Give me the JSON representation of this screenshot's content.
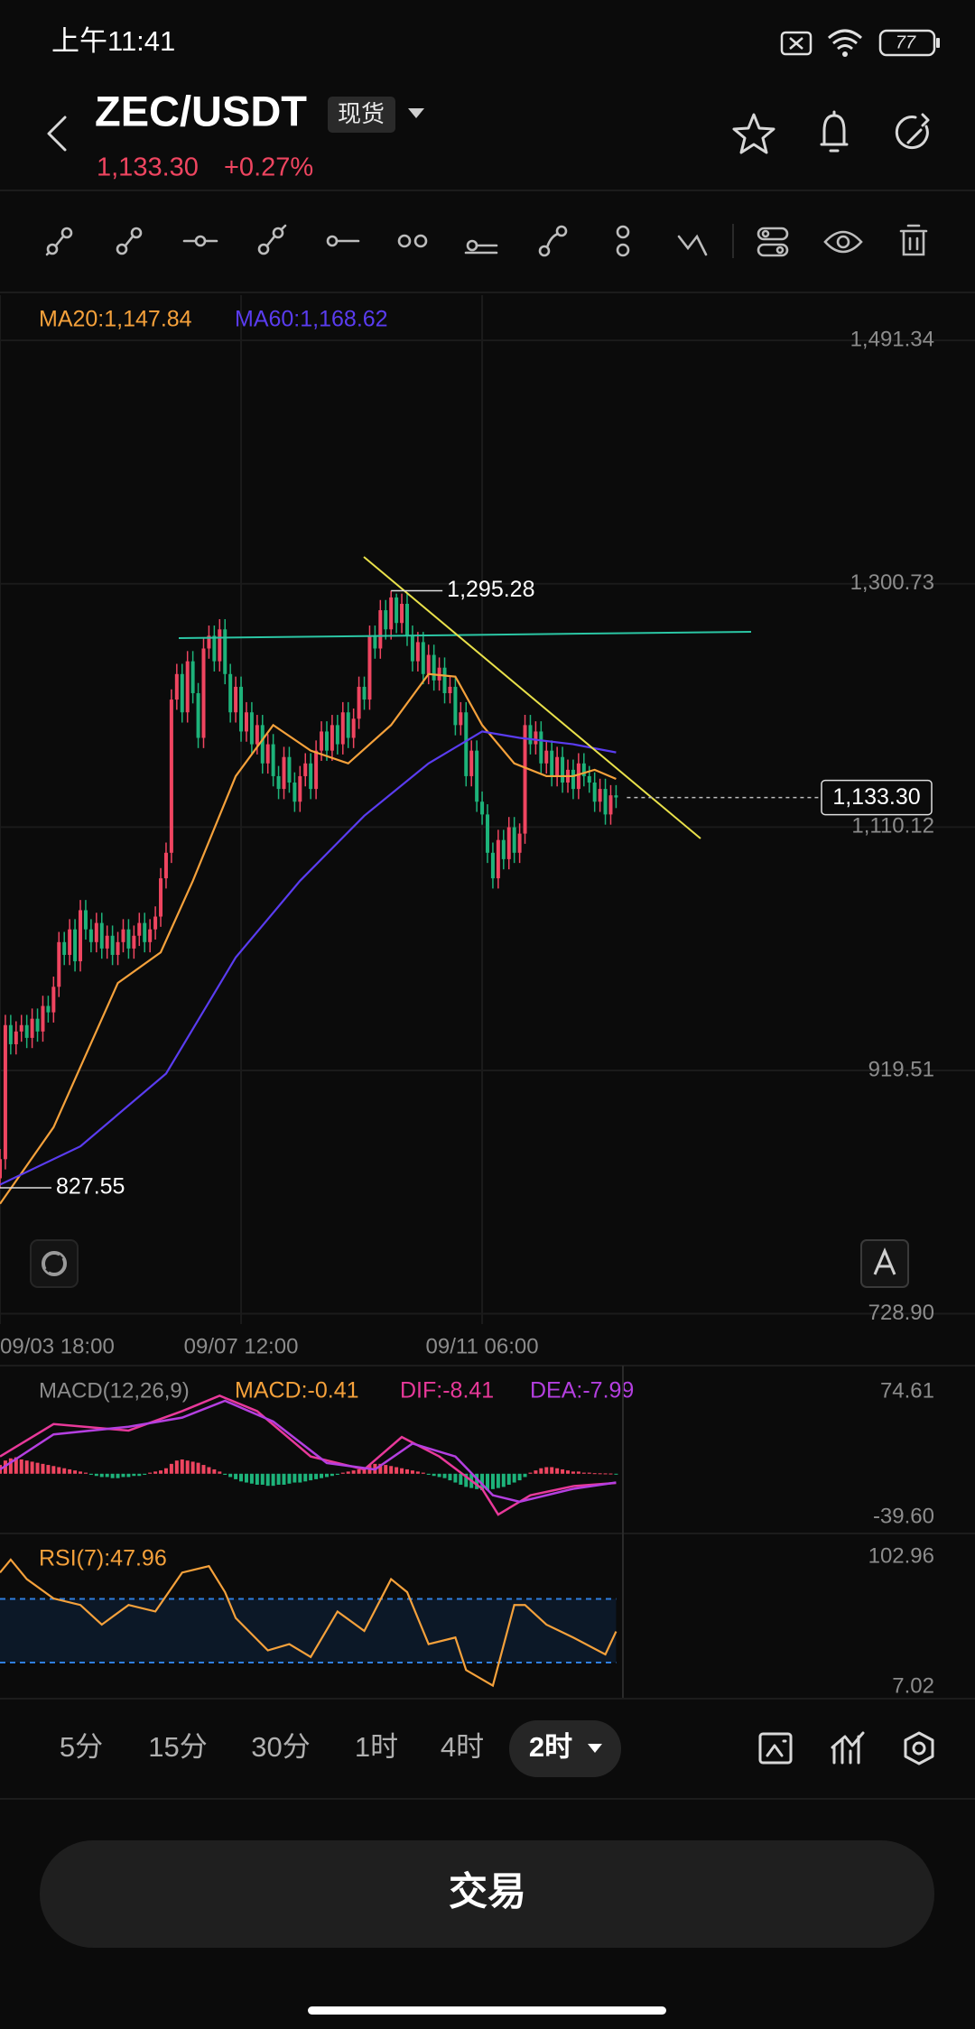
{
  "status_bar": {
    "time": "上午11:41",
    "battery": "77"
  },
  "header": {
    "pair": "ZEC/USDT",
    "market": "现货",
    "price": "1,133.30",
    "change": "+0.27%"
  },
  "chart_data": [
    {
      "type": "candlestick",
      "up_color": "#ef4560",
      "down_color": "#1db37a",
      "xlim": [
        0,
        182
      ],
      "xticks": [
        {
          "value": 0,
          "label": "09/03 18:00"
        },
        {
          "value": 45,
          "label": "09/07 12:00"
        },
        {
          "value": 90,
          "label": "09/11 06:00"
        }
      ],
      "ylim": [
        720.8,
        1526.8
      ],
      "yticks": [
        {
          "value": 1491.34,
          "label": "1,491.34"
        },
        {
          "value": 1300.73,
          "label": "1,300.73"
        },
        {
          "value": 1110.12,
          "label": "1,110.12"
        },
        {
          "value": 919.51,
          "label": "919.51"
        },
        {
          "value": 728.9,
          "label": "728.90"
        }
      ],
      "grid": true,
      "candles": {
        "open": [
          835,
          850,
          955,
          940,
          950,
          955,
          945,
          960,
          950,
          970,
          965,
          985,
          1020,
          1010,
          1030,
          1005,
          1045,
          1030,
          1020,
          1035,
          1015,
          1025,
          1010,
          1020,
          1030,
          1015,
          1025,
          1035,
          1020,
          1030,
          1040,
          1070,
          1090,
          1210,
          1230,
          1200,
          1240,
          1215,
          1180,
          1250,
          1260,
          1240,
          1265,
          1230,
          1200,
          1220,
          1185,
          1200,
          1175,
          1190,
          1160,
          1175,
          1150,
          1140,
          1165,
          1145,
          1130,
          1150,
          1160,
          1140,
          1170,
          1185,
          1170,
          1190,
          1175,
          1200,
          1180,
          1195,
          1220,
          1210,
          1260,
          1250,
          1280,
          1265,
          1290,
          1270,
          1285,
          1260,
          1240,
          1255,
          1230,
          1245,
          1225,
          1235,
          1215,
          1220,
          1190,
          1200,
          1150,
          1170,
          1130,
          1120,
          1090,
          1070,
          1100,
          1085,
          1110,
          1090,
          1105,
          1190,
          1175,
          1185,
          1160,
          1170,
          1150,
          1165,
          1145,
          1155,
          1140,
          1160,
          1150,
          1145,
          1130,
          1140,
          1120,
          1135
        ],
        "high": [
          858,
          963,
          963,
          958,
          963,
          963,
          968,
          968,
          978,
          978,
          993,
          1028,
          1028,
          1038,
          1038,
          1053,
          1053,
          1038,
          1043,
          1043,
          1033,
          1033,
          1028,
          1038,
          1038,
          1033,
          1043,
          1043,
          1038,
          1048,
          1078,
          1098,
          1218,
          1238,
          1238,
          1248,
          1248,
          1223,
          1258,
          1268,
          1268,
          1273,
          1273,
          1238,
          1228,
          1228,
          1208,
          1208,
          1198,
          1198,
          1183,
          1183,
          1158,
          1173,
          1173,
          1153,
          1158,
          1168,
          1168,
          1178,
          1193,
          1193,
          1198,
          1198,
          1208,
          1208,
          1203,
          1228,
          1228,
          1268,
          1268,
          1288,
          1288,
          1295.28,
          1293,
          1293,
          1293,
          1268,
          1263,
          1263,
          1253,
          1253,
          1243,
          1243,
          1228,
          1228,
          1208,
          1208,
          1178,
          1178,
          1138,
          1128,
          1098,
          1108,
          1108,
          1118,
          1118,
          1113,
          1198,
          1198,
          1193,
          1193,
          1178,
          1178,
          1173,
          1173,
          1163,
          1163,
          1168,
          1168,
          1158,
          1153,
          1148,
          1148,
          1143,
          1143
        ],
        "low": [
          827.55,
          842,
          932,
          932,
          942,
          937,
          937,
          942,
          942,
          957,
          957,
          977,
          1002,
          1002,
          997,
          997,
          1022,
          1012,
          1012,
          1007,
          1007,
          1002,
          1002,
          1012,
          1007,
          1007,
          1017,
          1012,
          1012,
          1022,
          1032,
          1062,
          1082,
          1202,
          1192,
          1192,
          1207,
          1172,
          1172,
          1242,
          1232,
          1232,
          1222,
          1192,
          1192,
          1177,
          1177,
          1167,
          1167,
          1152,
          1152,
          1142,
          1132,
          1132,
          1137,
          1122,
          1122,
          1142,
          1132,
          1132,
          1162,
          1162,
          1162,
          1167,
          1167,
          1172,
          1172,
          1187,
          1202,
          1202,
          1242,
          1242,
          1257,
          1257,
          1262,
          1262,
          1252,
          1232,
          1232,
          1222,
          1222,
          1217,
          1217,
          1207,
          1207,
          1182,
          1182,
          1142,
          1142,
          1122,
          1112,
          1082,
          1062,
          1062,
          1077,
          1077,
          1082,
          1082,
          1097,
          1167,
          1167,
          1152,
          1152,
          1142,
          1142,
          1137,
          1137,
          1132,
          1132,
          1142,
          1137,
          1122,
          1122,
          1112,
          1112,
          1125
        ],
        "close": [
          850,
          955,
          940,
          950,
          955,
          945,
          960,
          950,
          970,
          965,
          985,
          1020,
          1010,
          1030,
          1005,
          1045,
          1030,
          1020,
          1035,
          1015,
          1025,
          1010,
          1020,
          1030,
          1015,
          1025,
          1035,
          1020,
          1030,
          1040,
          1070,
          1090,
          1210,
          1230,
          1200,
          1240,
          1215,
          1180,
          1250,
          1260,
          1240,
          1265,
          1230,
          1200,
          1220,
          1185,
          1200,
          1175,
          1190,
          1160,
          1175,
          1150,
          1140,
          1165,
          1145,
          1130,
          1150,
          1160,
          1140,
          1170,
          1185,
          1170,
          1190,
          1175,
          1200,
          1180,
          1195,
          1220,
          1210,
          1260,
          1250,
          1280,
          1265,
          1290,
          1270,
          1285,
          1260,
          1240,
          1255,
          1230,
          1245,
          1225,
          1235,
          1215,
          1220,
          1190,
          1200,
          1150,
          1170,
          1130,
          1120,
          1090,
          1070,
          1100,
          1085,
          1110,
          1090,
          1105,
          1190,
          1175,
          1185,
          1160,
          1170,
          1150,
          1165,
          1145,
          1155,
          1140,
          1160,
          1150,
          1145,
          1130,
          1140,
          1120,
          1135,
          1133.3
        ]
      },
      "series": [
        {
          "label": "MA20:1,147.84",
          "color": "#f5a13b",
          "x": [
            0,
            10,
            22,
            30,
            36,
            44,
            51,
            58,
            65,
            73,
            80,
            85,
            90,
            96,
            102,
            107,
            111,
            115
          ],
          "values": [
            815,
            875,
            988,
            1012,
            1068,
            1150,
            1190,
            1170,
            1160,
            1190,
            1230,
            1228,
            1190,
            1160,
            1150,
            1150,
            1155,
            1147.84
          ]
        },
        {
          "label": "MA60:1,168.62",
          "color": "#5a3cf0",
          "x": [
            0,
            15,
            31,
            44,
            56,
            68,
            80,
            90,
            97,
            107,
            115
          ],
          "values": [
            830,
            860,
            917,
            1008,
            1068,
            1119,
            1160,
            1185,
            1180,
            1175,
            1168.62
          ]
        }
      ],
      "annotations": [
        {
          "x": 73,
          "value": 1295.28,
          "label": "1,295.28"
        },
        {
          "x": 0,
          "value": 827.55,
          "label": "827.55"
        }
      ],
      "last_price": {
        "value": 1133.3,
        "label": "1,133.30"
      }
    },
    {
      "type": "macd",
      "title": "MACD(12,26,9)",
      "xlim": [
        0,
        182
      ],
      "ylim": [
        -39.6,
        74.61
      ],
      "yticks": [
        74.61,
        {
          "value": -39.6,
          "label": "-39.60"
        }
      ],
      "histogram": {
        "label": "MACD:-0.41",
        "color": "#f5a13b",
        "up_color": "#ef4560",
        "down_color": "#1db37a",
        "values": [
          8,
          12,
          14,
          15,
          13,
          12,
          11,
          10,
          9,
          8,
          7,
          6,
          5,
          4,
          3,
          2,
          1,
          -1,
          -2,
          -3,
          -3,
          -4,
          -4,
          -3,
          -3,
          -2,
          -2,
          -1,
          1,
          2,
          3,
          5,
          9,
          12,
          13,
          12,
          11,
          10,
          8,
          6,
          4,
          2,
          -1,
          -3,
          -5,
          -7,
          -8,
          -9,
          -10,
          -10,
          -11,
          -11,
          -10,
          -10,
          -9,
          -8,
          -8,
          -7,
          -6,
          -5,
          -4,
          -3,
          -2,
          -1,
          1,
          2,
          3,
          4,
          6,
          8,
          9,
          9,
          8,
          7,
          6,
          5,
          4,
          3,
          2,
          1,
          -1,
          -2,
          -3,
          -4,
          -6,
          -8,
          -10,
          -12,
          -13,
          -14,
          -15,
          -15,
          -14,
          -13,
          -12,
          -10,
          -8,
          -6,
          -3,
          1,
          3,
          5,
          6,
          6,
          5,
          4,
          3,
          2,
          2,
          1,
          1,
          0.5,
          0.4,
          0.3,
          0.2,
          -0.41
        ]
      },
      "series": [
        {
          "label": "DIF:-8.41",
          "color": "#e8399a",
          "x": [
            0,
            10,
            24,
            34,
            41,
            48,
            58,
            68,
            75,
            82,
            90,
            93,
            99,
            107,
            115
          ],
          "values": [
            15.7,
            45.2,
            39.3,
            57,
            71,
            57,
            15.7,
            3.9,
            33.4,
            15.7,
            -13.7,
            -37.2,
            -19.6,
            -11.3,
            -8.41
          ]
        },
        {
          "label": "DEA:-7.99",
          "color": "#b43fe0",
          "x": [
            0,
            10,
            24,
            34,
            42,
            51,
            61,
            70,
            77,
            85,
            92,
            97,
            107,
            115
          ],
          "values": [
            3.9,
            35.8,
            42.8,
            51.1,
            66.4,
            47.5,
            9.8,
            3.9,
            27.5,
            15.7,
            -19.6,
            -25.5,
            -13.7,
            -7.99
          ]
        }
      ]
    },
    {
      "type": "rsi",
      "xlim": [
        0,
        182
      ],
      "ylim": [
        7.02,
        102.96
      ],
      "yticks": [
        102.96,
        7.02
      ],
      "levels": [
        72,
        25
      ],
      "level_color": "#2f7fe0",
      "series": [
        {
          "label": "RSI(7):47.96",
          "color": "#f5a13b",
          "x": [
            0,
            2,
            5,
            10,
            15,
            19,
            24,
            29,
            34,
            39,
            42,
            44,
            50,
            54,
            58,
            63,
            68,
            73,
            76,
            80,
            85,
            87,
            92,
            96,
            98,
            102,
            107,
            113,
            115
          ],
          "values": [
            91.4,
            101,
            86.6,
            72.3,
            67.5,
            53,
            67.5,
            62.7,
            91.4,
            96.2,
            77,
            57.9,
            34,
            38.6,
            29.1,
            62.7,
            48.3,
            86.6,
            77,
            38.6,
            43.5,
            19.5,
            8,
            67.5,
            67.5,
            53,
            43.5,
            31,
            47.96
          ]
        }
      ]
    }
  ],
  "timeframes": {
    "options": [
      "5分",
      "15分",
      "30分",
      "1时",
      "4时"
    ],
    "selected": "2时"
  },
  "trade_button": "交易"
}
